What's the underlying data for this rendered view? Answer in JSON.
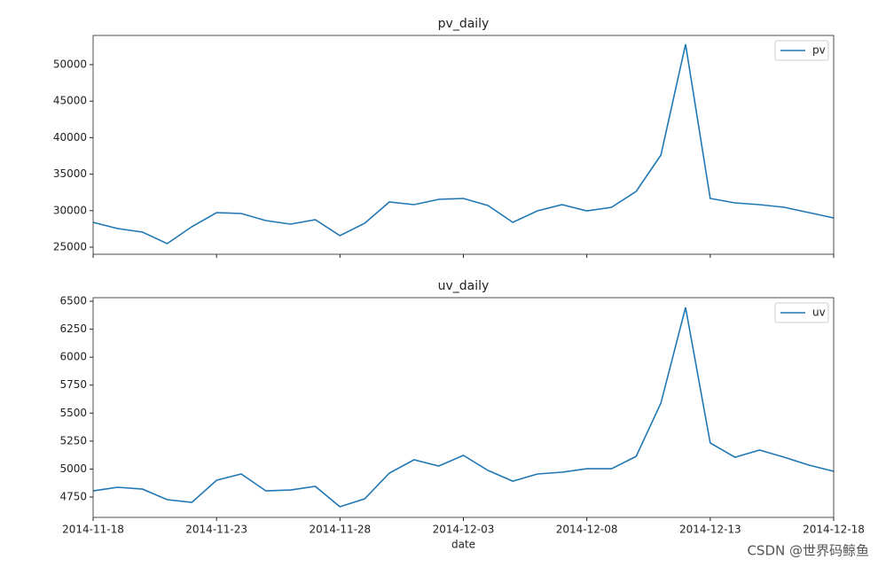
{
  "chart_data": [
    {
      "type": "line",
      "title": "pv_daily",
      "x": [
        "2014-11-18",
        "2014-11-19",
        "2014-11-20",
        "2014-11-21",
        "2014-11-22",
        "2014-11-23",
        "2014-11-24",
        "2014-11-25",
        "2014-11-26",
        "2014-11-27",
        "2014-11-28",
        "2014-11-29",
        "2014-11-30",
        "2014-12-01",
        "2014-12-02",
        "2014-12-03",
        "2014-12-04",
        "2014-12-05",
        "2014-12-06",
        "2014-12-07",
        "2014-12-08",
        "2014-12-09",
        "2014-12-10",
        "2014-12-11",
        "2014-12-12",
        "2014-12-13",
        "2014-12-14",
        "2014-12-15",
        "2014-12-16",
        "2014-12-17",
        "2014-12-18"
      ],
      "series": [
        {
          "name": "pv",
          "color": "#1f77b4",
          "values": [
            28400,
            27550,
            27060,
            25490,
            27800,
            29730,
            29610,
            28640,
            28160,
            28760,
            26580,
            28280,
            31190,
            30830,
            31550,
            31670,
            30700,
            28400,
            29980,
            30830,
            29980,
            30460,
            32650,
            37620,
            52790,
            31670,
            31070,
            30830,
            30460,
            29730,
            29000
          ]
        }
      ],
      "xlim": [
        "2014-11-18",
        "2014-12-18"
      ],
      "xticks": [
        "2014-11-18",
        "2014-11-23",
        "2014-11-28",
        "2014-12-03",
        "2014-12-08",
        "2014-12-13",
        "2014-12-18"
      ],
      "ylim": [
        24030,
        54000
      ],
      "yticks": [
        25000,
        30000,
        35000,
        40000,
        45000,
        50000
      ],
      "legend": "upper right"
    },
    {
      "type": "line",
      "title": "uv_daily",
      "xlabel": "date",
      "x": [
        "2014-11-18",
        "2014-11-19",
        "2014-11-20",
        "2014-11-21",
        "2014-11-22",
        "2014-11-23",
        "2014-11-24",
        "2014-11-25",
        "2014-11-26",
        "2014-11-27",
        "2014-11-28",
        "2014-11-29",
        "2014-11-30",
        "2014-12-01",
        "2014-12-02",
        "2014-12-03",
        "2014-12-04",
        "2014-12-05",
        "2014-12-06",
        "2014-12-07",
        "2014-12-08",
        "2014-12-09",
        "2014-12-10",
        "2014-12-11",
        "2014-12-12",
        "2014-12-13",
        "2014-12-14",
        "2014-12-15",
        "2014-12-16",
        "2014-12-17",
        "2014-12-18"
      ],
      "series": [
        {
          "name": "uv",
          "color": "#1f77b4",
          "values": [
            4805,
            4837,
            4821,
            4726,
            4702,
            4900,
            4956,
            4805,
            4813,
            4845,
            4663,
            4734,
            4964,
            5083,
            5027,
            5122,
            4988,
            4892,
            4956,
            4972,
            5003,
            5003,
            5114,
            5590,
            6445,
            5233,
            5106,
            5170,
            5106,
            5035,
            4980
          ]
        }
      ],
      "xlim": [
        "2014-11-18",
        "2014-12-18"
      ],
      "xticks": [
        "2014-11-18",
        "2014-11-23",
        "2014-11-28",
        "2014-12-03",
        "2014-12-08",
        "2014-12-13",
        "2014-12-18"
      ],
      "ylim": [
        4568,
        6532
      ],
      "yticks": [
        4750,
        5000,
        5250,
        5500,
        5750,
        6000,
        6250,
        6500
      ],
      "legend": "upper right"
    }
  ],
  "watermark": "CSDN @世界码鲸鱼"
}
